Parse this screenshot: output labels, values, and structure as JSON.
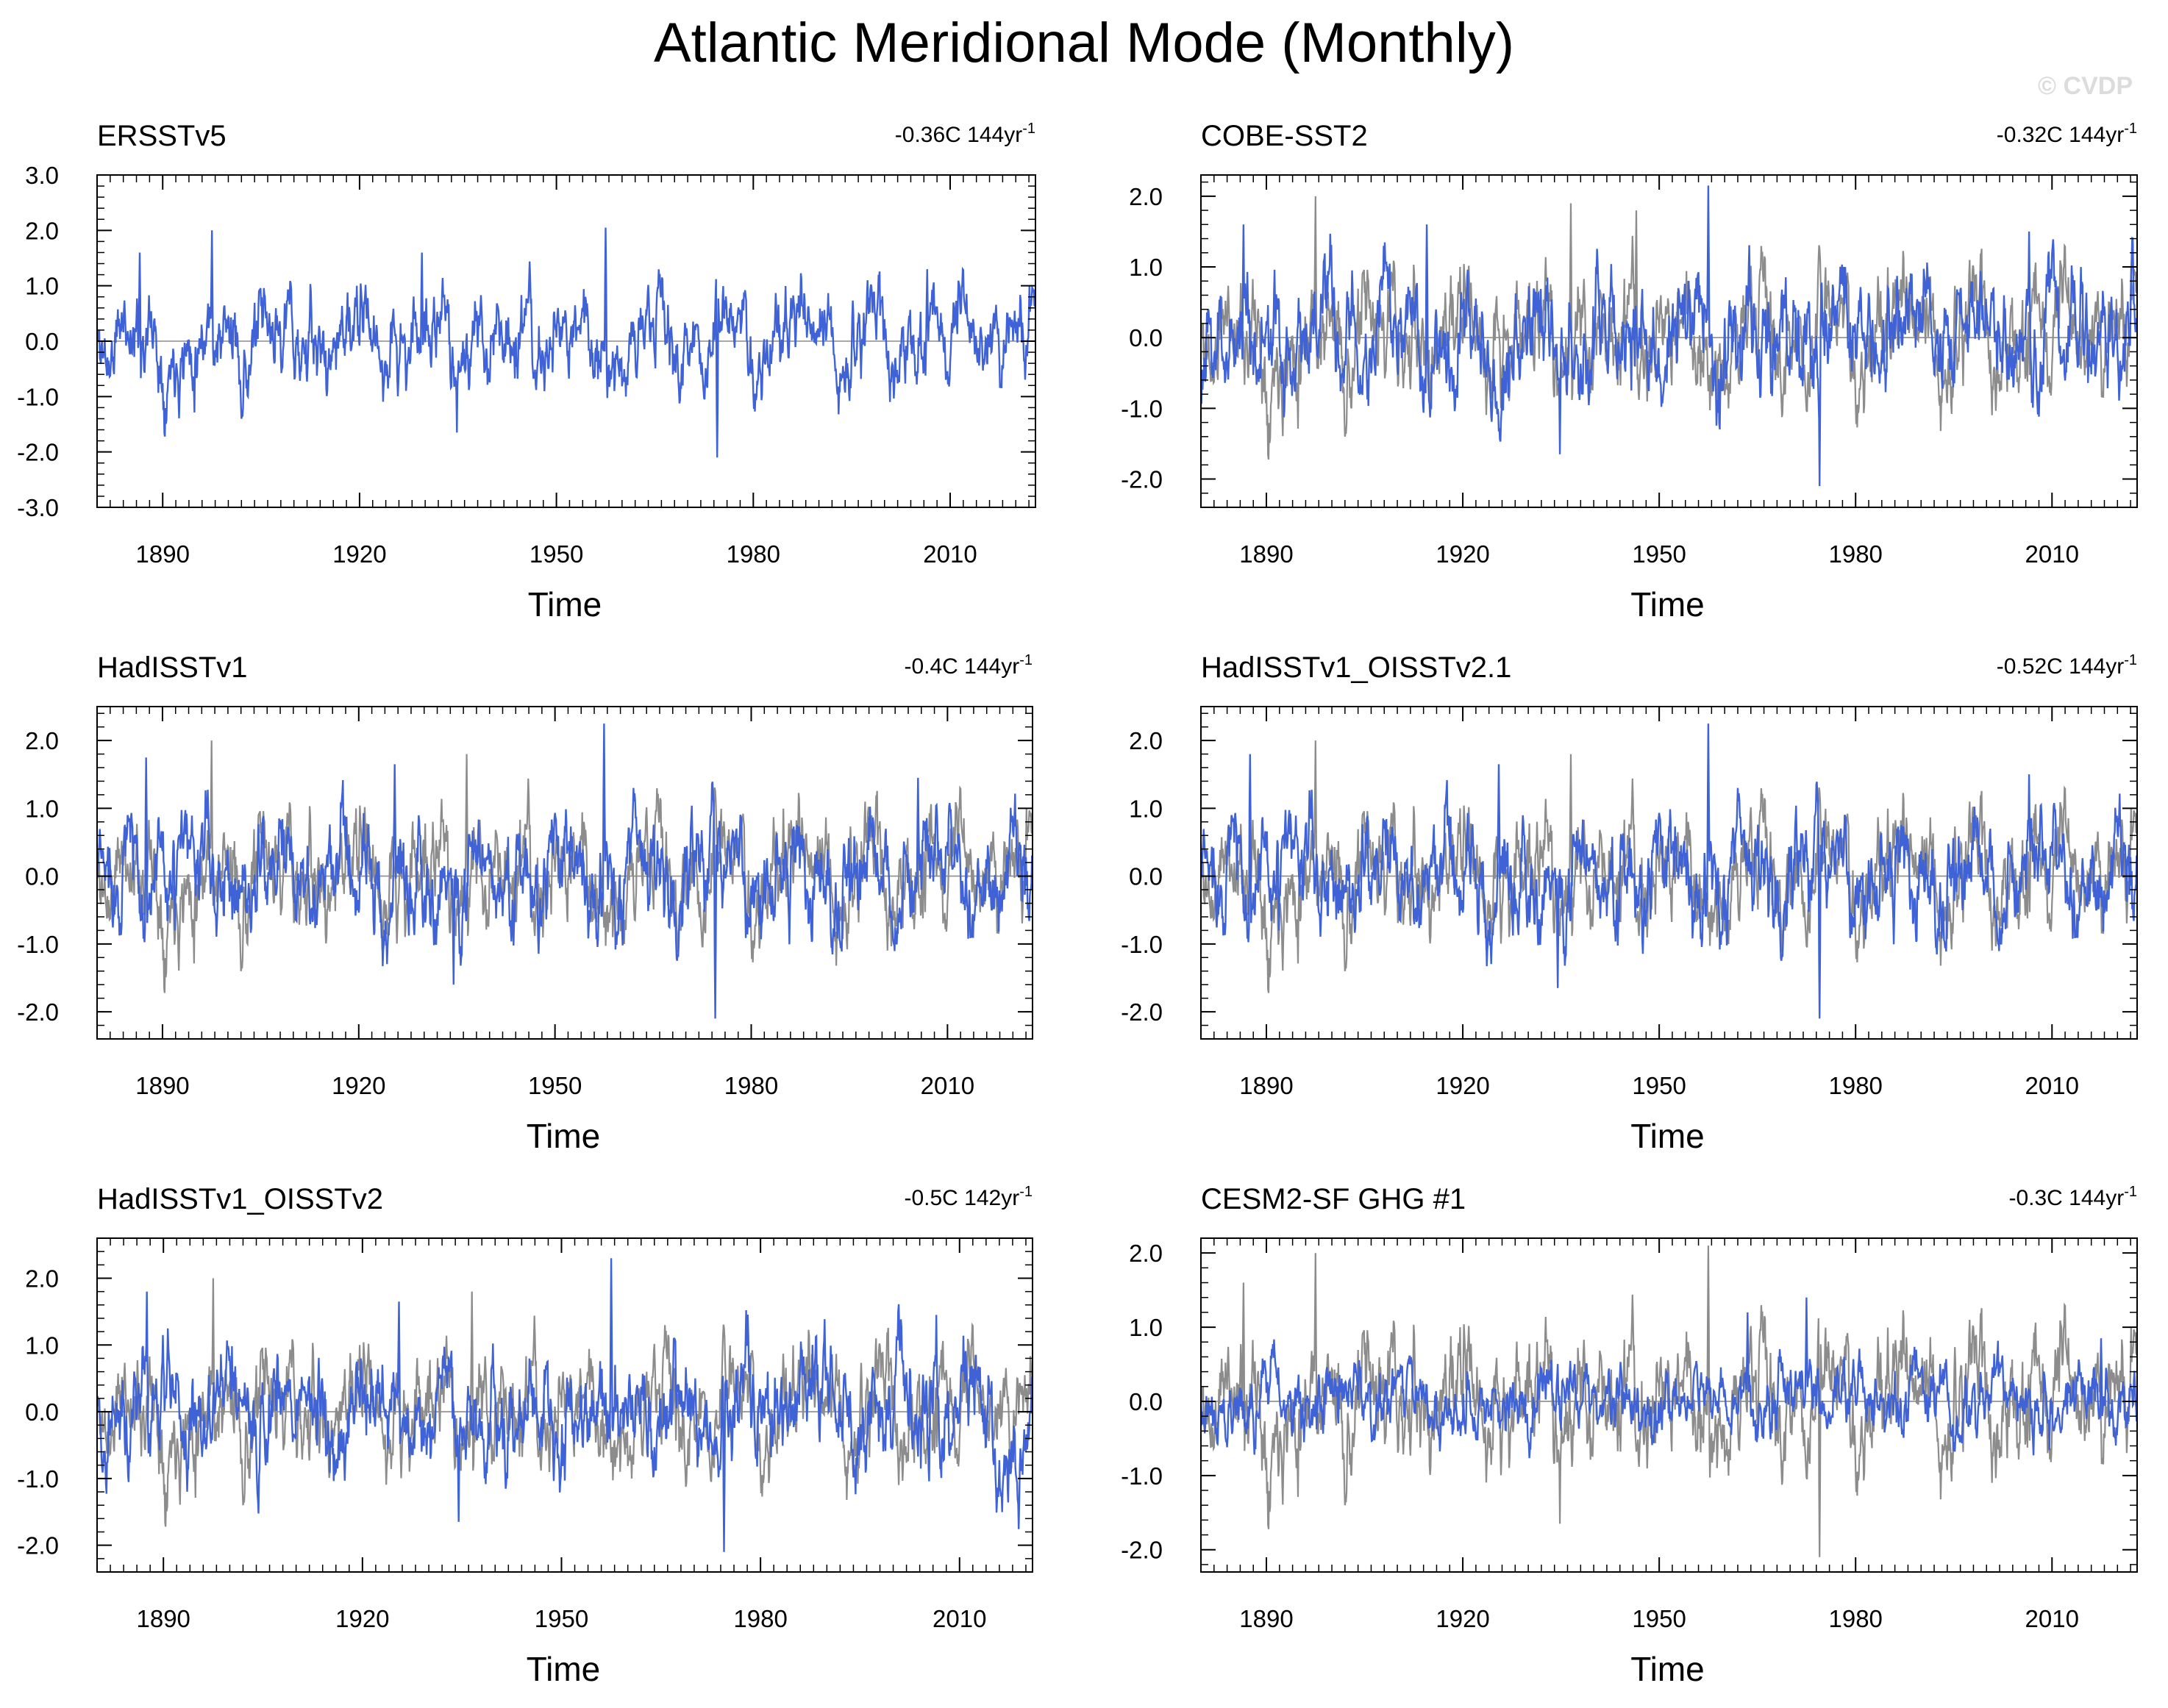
{
  "figure": {
    "title": "Atlantic Meridional Mode (Monthly)",
    "watermark": "© CVDP",
    "xlabel": "Time",
    "colors": {
      "series": "#3f63d6",
      "reference": "#8c8c8c",
      "zero_line": "#8c8c8c",
      "axes": "#000000"
    }
  },
  "chart_data": [
    {
      "type": "line",
      "title": "ERSSTv5",
      "trend": "-0.36C 144yr",
      "trend_sup": "-1",
      "xlabel": "Time",
      "xlim": [
        1880,
        2023
      ],
      "ylim": [
        -3.0,
        3.0
      ],
      "xticks": [
        1890,
        1920,
        1950,
        1980,
        2010
      ],
      "xtick_labels": [
        "1890",
        "1920",
        "1950",
        "1980",
        "2010"
      ],
      "yticks": [
        -3.0,
        -2.0,
        -1.0,
        0.0,
        1.0,
        2.0,
        3.0
      ],
      "ytick_labels": [
        "-3.0",
        "-2.0",
        "-1.0",
        "0.0",
        "1.0",
        "2.0",
        "3.0"
      ],
      "reference_series": false,
      "seed": 11,
      "ref_seed": 11,
      "amp": 1.0,
      "series_peaks": [
        [
          1886.5,
          1.6
        ],
        [
          1897.5,
          2.0
        ],
        [
          1929.5,
          1.6
        ],
        [
          1957.5,
          2.05
        ],
        [
          1974.5,
          -2.1
        ],
        [
          1934.8,
          -1.65
        ],
        [
          2006.5,
          1.3
        ]
      ]
    },
    {
      "type": "line",
      "title": "COBE-SST2",
      "trend": "-0.32C 144yr",
      "trend_sup": "-1",
      "xlabel": "Time",
      "xlim": [
        1880,
        2023
      ],
      "ylim": [
        -2.4,
        2.3
      ],
      "xticks": [
        1890,
        1920,
        1950,
        1980,
        2010
      ],
      "xtick_labels": [
        "1890",
        "1920",
        "1950",
        "1980",
        "2010"
      ],
      "yticks": [
        -2.0,
        -1.0,
        0.0,
        1.0,
        2.0
      ],
      "ytick_labels": [
        "-2.0",
        "-1.0",
        "0.0",
        "1.0",
        "2.0"
      ],
      "reference_series": true,
      "seed": 23,
      "ref_seed": 11,
      "amp": 1.0,
      "series_peaks": [
        [
          1886.5,
          1.6
        ],
        [
          1914.5,
          1.6
        ],
        [
          1957.5,
          2.15
        ],
        [
          1974.5,
          -2.1
        ],
        [
          1934.8,
          -1.65
        ],
        [
          2006.5,
          1.5
        ]
      ],
      "ref_peaks": [
        [
          1897.5,
          2.0
        ],
        [
          1946.5,
          1.8
        ],
        [
          1936.5,
          1.9
        ]
      ]
    },
    {
      "type": "line",
      "title": "HadISSTv1",
      "trend": "-0.4C 144yr",
      "trend_sup": "-1",
      "xlabel": "Time",
      "xlim": [
        1880,
        2023
      ],
      "ylim": [
        -2.4,
        2.5
      ],
      "xticks": [
        1890,
        1920,
        1950,
        1980,
        2010
      ],
      "xtick_labels": [
        "1890",
        "1920",
        "1950",
        "1980",
        "2010"
      ],
      "yticks": [
        -2.0,
        -1.0,
        0.0,
        1.0,
        2.0
      ],
      "ytick_labels": [
        "-2.0",
        "-1.0",
        "0.0",
        "1.0",
        "2.0"
      ],
      "reference_series": true,
      "seed": 37,
      "ref_seed": 11,
      "amp": 1.0,
      "series_peaks": [
        [
          1887.5,
          1.75
        ],
        [
          1957.5,
          2.25
        ],
        [
          1974.5,
          -2.1
        ],
        [
          1934.5,
          -1.6
        ],
        [
          2005.5,
          1.45
        ],
        [
          1925.5,
          1.65
        ]
      ],
      "ref_peaks": [
        [
          1897.5,
          2.0
        ],
        [
          1936.5,
          1.8
        ]
      ]
    },
    {
      "type": "line",
      "title": "HadISSTv1_OISSTv2.1",
      "trend": "-0.52C 144yr",
      "trend_sup": "-1",
      "xlabel": "Time",
      "xlim": [
        1880,
        2023
      ],
      "ylim": [
        -2.4,
        2.5
      ],
      "xticks": [
        1890,
        1920,
        1950,
        1980,
        2010
      ],
      "xtick_labels": [
        "1890",
        "1920",
        "1950",
        "1980",
        "2010"
      ],
      "yticks": [
        -2.0,
        -1.0,
        0.0,
        1.0,
        2.0
      ],
      "ytick_labels": [
        "-2.0",
        "-1.0",
        "0.0",
        "1.0",
        "2.0"
      ],
      "reference_series": true,
      "seed": 37,
      "ref_seed": 11,
      "amp": 1.0,
      "series_peaks": [
        [
          1887.5,
          1.8
        ],
        [
          1957.5,
          2.25
        ],
        [
          1974.5,
          -2.1
        ],
        [
          1934.5,
          -1.65
        ],
        [
          2006.5,
          1.5
        ],
        [
          1925.5,
          1.65
        ]
      ],
      "ref_peaks": [
        [
          1897.5,
          2.0
        ],
        [
          1936.5,
          1.8
        ]
      ]
    },
    {
      "type": "line",
      "title": "HadISSTv1_OISSTv2",
      "trend": "-0.5C 142yr",
      "trend_sup": "-1",
      "xlabel": "Time",
      "xlim": [
        1880,
        2021
      ],
      "ylim": [
        -2.4,
        2.6
      ],
      "xticks": [
        1890,
        1920,
        1950,
        1980,
        2010
      ],
      "xtick_labels": [
        "1890",
        "1920",
        "1950",
        "1980",
        "2010"
      ],
      "yticks": [
        -2.0,
        -1.0,
        0.0,
        1.0,
        2.0
      ],
      "ytick_labels": [
        "-2.0",
        "-1.0",
        "0.0",
        "1.0",
        "2.0"
      ],
      "reference_series": true,
      "seed": 41,
      "ref_seed": 11,
      "amp": 1.0,
      "series_peaks": [
        [
          1887.5,
          1.8
        ],
        [
          1957.5,
          2.3
        ],
        [
          1974.5,
          -2.1
        ],
        [
          1934.5,
          -1.65
        ],
        [
          2006.5,
          1.45
        ],
        [
          1925.5,
          1.65
        ]
      ],
      "ref_peaks": [
        [
          1897.5,
          2.0
        ],
        [
          1936.5,
          1.8
        ]
      ]
    },
    {
      "type": "line",
      "title": "CESM2-SF GHG #1",
      "trend": "-0.3C 144yr",
      "trend_sup": "-1",
      "xlabel": "Time",
      "xlim": [
        1880,
        2023
      ],
      "ylim": [
        -2.3,
        2.2
      ],
      "xticks": [
        1890,
        1920,
        1950,
        1980,
        2010
      ],
      "xtick_labels": [
        "1890",
        "1920",
        "1950",
        "1980",
        "2010"
      ],
      "yticks": [
        -2.0,
        -1.0,
        0.0,
        1.0,
        2.0
      ],
      "ytick_labels": [
        "-2.0",
        "-1.0",
        "0.0",
        "1.0",
        "2.0"
      ],
      "reference_series": true,
      "seed": 59,
      "ref_seed": 11,
      "amp": 0.6,
      "series_peaks": [
        [
          1972.5,
          1.4
        ],
        [
          1963.5,
          1.2
        ],
        [
          2017.5,
          0.85
        ]
      ],
      "ref_peaks": [
        [
          1897.5,
          2.0
        ],
        [
          1957.5,
          2.1
        ],
        [
          1974.5,
          -2.1
        ],
        [
          1934.8,
          -1.65
        ],
        [
          1886.5,
          1.6
        ]
      ]
    }
  ]
}
